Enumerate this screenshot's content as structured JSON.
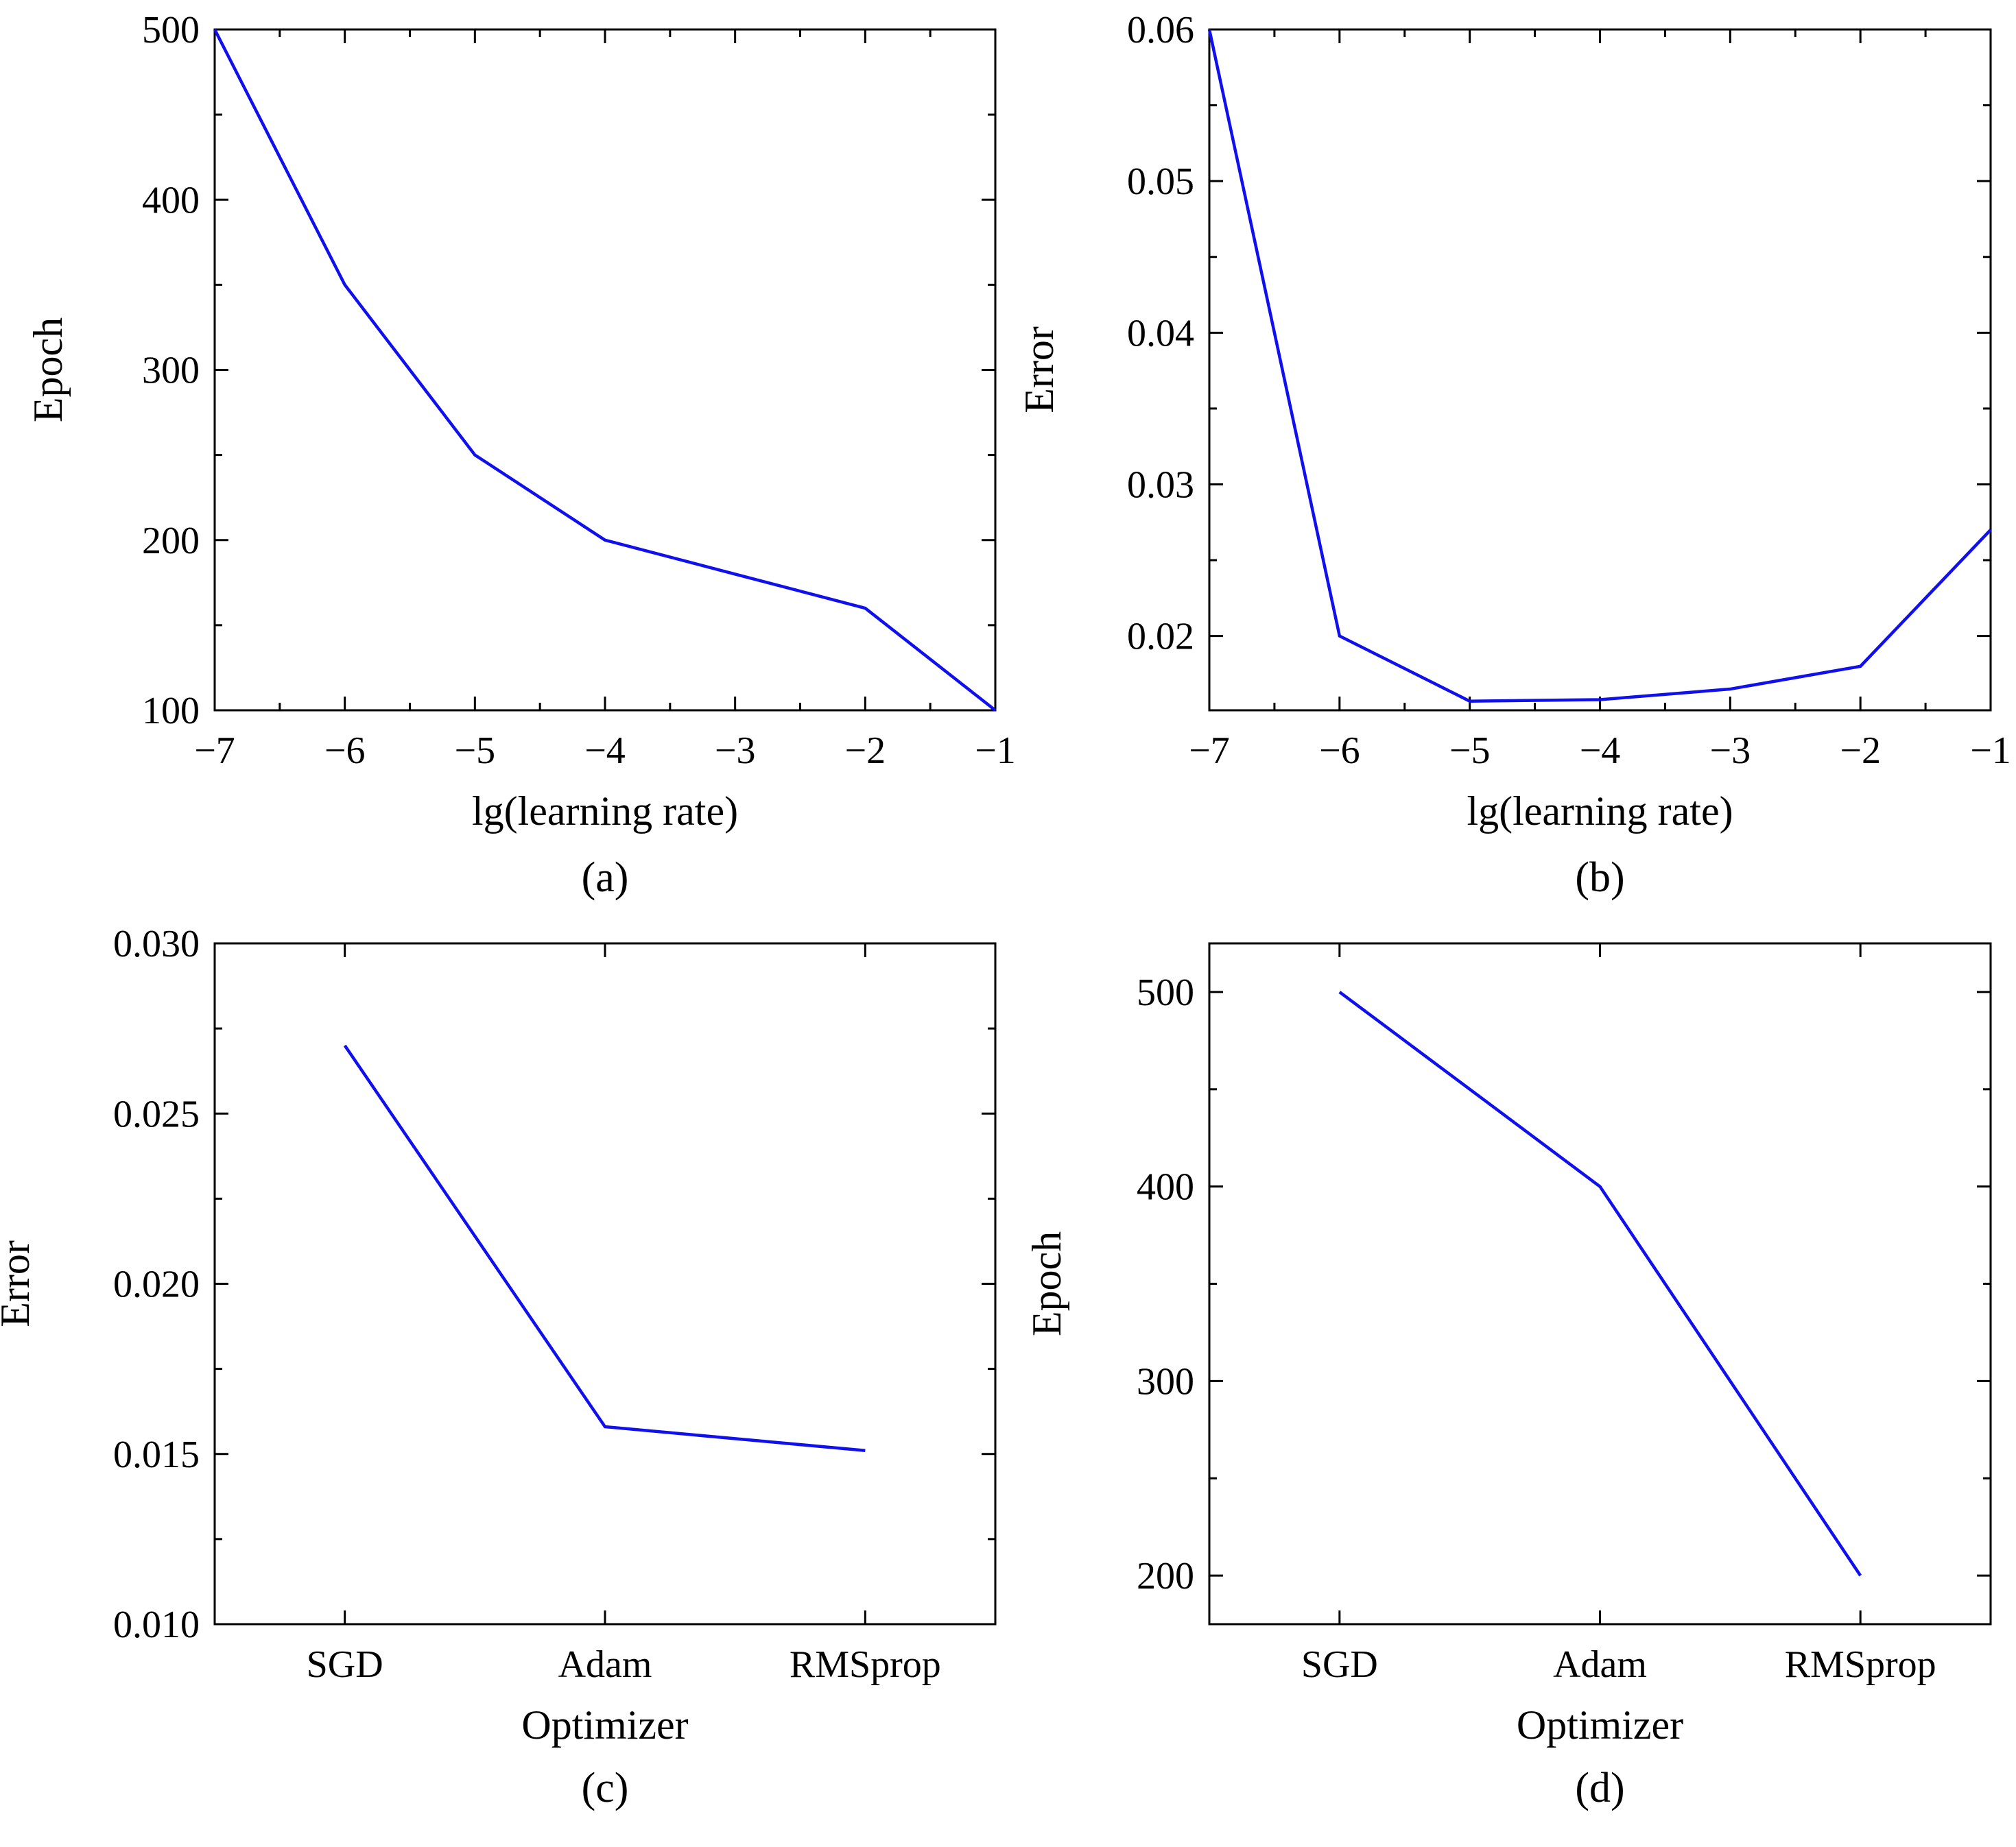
{
  "chart_data": [
    {
      "id": "a",
      "type": "line",
      "panel_label": "(a)",
      "xlabel": "lg(learning rate)",
      "ylabel": "Epoch",
      "xlim": [
        -7,
        -1
      ],
      "ylim": [
        100,
        500
      ],
      "x_ticks": [
        -7,
        -6,
        -5,
        -4,
        -3,
        -2,
        -1
      ],
      "x_tick_labels": [
        "−7",
        "−6",
        "−5",
        "−4",
        "−3",
        "−2",
        "−1"
      ],
      "y_ticks": [
        100,
        200,
        300,
        400,
        500
      ],
      "y_tick_labels": [
        "100",
        "200",
        "300",
        "400",
        "500"
      ],
      "x_minor_ticks": [
        -6.5,
        -5.5,
        -4.5,
        -3.5,
        -2.5,
        -1.5
      ],
      "y_minor_ticks": [
        150,
        250,
        350,
        450
      ],
      "grid": false,
      "series": [
        {
          "name": "Epoch",
          "color": "#1010ee",
          "x": [
            -7,
            -6,
            -5,
            -4,
            -3,
            -2,
            -1
          ],
          "y": [
            500,
            350,
            250,
            200,
            180,
            160,
            100
          ]
        }
      ]
    },
    {
      "id": "b",
      "type": "line",
      "panel_label": "(b)",
      "xlabel": "lg(learning rate)",
      "ylabel": "Error",
      "xlim": [
        -7,
        -1
      ],
      "ylim": [
        0.0151,
        0.06
      ],
      "x_ticks": [
        -7,
        -6,
        -5,
        -4,
        -3,
        -2,
        -1
      ],
      "x_tick_labels": [
        "−7",
        "−6",
        "−5",
        "−4",
        "−3",
        "−2",
        "−1"
      ],
      "y_ticks": [
        0.02,
        0.03,
        0.04,
        0.05,
        0.06
      ],
      "y_tick_labels": [
        "0.02",
        "0.03",
        "0.04",
        "0.05",
        "0.06"
      ],
      "x_minor_ticks": [
        -6.5,
        -5.5,
        -4.5,
        -3.5,
        -2.5,
        -1.5
      ],
      "y_minor_ticks": [
        0.025,
        0.035,
        0.045,
        0.055
      ],
      "grid": false,
      "series": [
        {
          "name": "Error",
          "color": "#1010ee",
          "x": [
            -7,
            -6,
            -5,
            -4,
            -3,
            -2,
            -1
          ],
          "y": [
            0.06,
            0.02,
            0.0157,
            0.0158,
            0.0165,
            0.018,
            0.027
          ]
        }
      ]
    },
    {
      "id": "c",
      "type": "line",
      "panel_label": "(c)",
      "xlabel": "Optimizer",
      "ylabel": "Error",
      "categories": [
        "SGD",
        "Adam",
        "RMSprop"
      ],
      "xlim": [
        -0.5,
        2.5
      ],
      "ylim": [
        0.01,
        0.03
      ],
      "x_ticks": [
        0,
        1,
        2
      ],
      "x_tick_labels": [
        "SGD",
        "Adam",
        "RMSprop"
      ],
      "y_ticks": [
        0.01,
        0.015,
        0.02,
        0.025,
        0.03
      ],
      "y_tick_labels": [
        "0.010",
        "0.015",
        "0.020",
        "0.025",
        "0.030"
      ],
      "x_minor_ticks": [],
      "y_minor_ticks": [
        0.0125,
        0.0175,
        0.0225,
        0.0275
      ],
      "grid": false,
      "series": [
        {
          "name": "Error",
          "color": "#1010ee",
          "x": [
            0,
            1,
            2
          ],
          "y": [
            0.027,
            0.0158,
            0.0151
          ]
        }
      ]
    },
    {
      "id": "d",
      "type": "line",
      "panel_label": "(d)",
      "xlabel": "Optimizer",
      "ylabel": "Epoch",
      "categories": [
        "SGD",
        "Adam",
        "RMSprop"
      ],
      "xlim": [
        -0.5,
        2.5
      ],
      "ylim": [
        175,
        525
      ],
      "x_ticks": [
        0,
        1,
        2
      ],
      "x_tick_labels": [
        "SGD",
        "Adam",
        "RMSprop"
      ],
      "y_ticks": [
        200,
        300,
        400,
        500
      ],
      "y_tick_labels": [
        "200",
        "300",
        "400",
        "500"
      ],
      "x_minor_ticks": [],
      "y_minor_ticks": [
        250,
        350,
        450
      ],
      "grid": false,
      "series": [
        {
          "name": "Epoch",
          "color": "#1010ee",
          "x": [
            0,
            1,
            2
          ],
          "y": [
            500,
            400,
            200
          ]
        }
      ]
    }
  ]
}
